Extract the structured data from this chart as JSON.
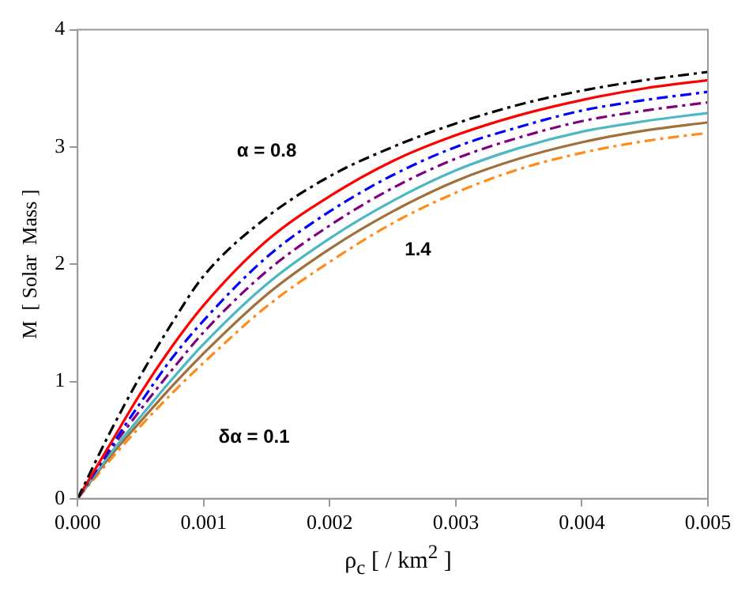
{
  "chart_data": {
    "type": "line",
    "xlabel": "ρ$_{c}$  [ / km$^{2}$ ]",
    "ylabel": "M  [ Solar  Mass ]",
    "x": [
      0,
      0.00025,
      0.0005,
      0.00075,
      0.001,
      0.0015,
      0.002,
      0.0025,
      0.003,
      0.0035,
      0.004,
      0.0045,
      0.005
    ],
    "series": [
      {
        "color": "#000000",
        "line_style": "dashed",
        "values": [
          0,
          0.55,
          1.05,
          1.5,
          1.9,
          2.4,
          2.75,
          3.0,
          3.2,
          3.36,
          3.48,
          3.57,
          3.64
        ]
      },
      {
        "color": "#ff0000",
        "line_style": "solid",
        "values": [
          0,
          0.45,
          0.9,
          1.3,
          1.65,
          2.2,
          2.58,
          2.88,
          3.1,
          3.27,
          3.4,
          3.5,
          3.57
        ]
      },
      {
        "color": "#0000ff",
        "line_style": "dashed",
        "values": [
          0,
          0.42,
          0.82,
          1.2,
          1.52,
          2.06,
          2.45,
          2.76,
          3.0,
          3.17,
          3.31,
          3.4,
          3.47
        ]
      },
      {
        "color": "#800080",
        "line_style": "dashed",
        "values": [
          0,
          0.4,
          0.76,
          1.1,
          1.42,
          1.94,
          2.33,
          2.65,
          2.9,
          3.08,
          3.22,
          3.31,
          3.38
        ]
      },
      {
        "color": "#4db8c4",
        "line_style": "solid",
        "values": [
          0,
          0.37,
          0.7,
          1.02,
          1.32,
          1.83,
          2.22,
          2.54,
          2.8,
          2.99,
          3.13,
          3.22,
          3.29
        ]
      },
      {
        "color": "#a0703a",
        "line_style": "solid",
        "values": [
          0,
          0.35,
          0.66,
          0.96,
          1.24,
          1.74,
          2.13,
          2.45,
          2.71,
          2.9,
          3.04,
          3.14,
          3.21
        ]
      },
      {
        "color": "#ff8c1a",
        "line_style": "dashed",
        "values": [
          0,
          0.32,
          0.62,
          0.9,
          1.16,
          1.64,
          2.02,
          2.35,
          2.61,
          2.81,
          2.95,
          3.05,
          3.12
        ]
      }
    ],
    "xlim": [
      0,
      0.005
    ],
    "xticks": [
      {
        "value": 0,
        "label": "0.000"
      },
      {
        "value": 0.001,
        "label": "0.001"
      },
      {
        "value": 0.002,
        "label": "0.002"
      },
      {
        "value": 0.003,
        "label": "0.003"
      },
      {
        "value": 0.004,
        "label": "0.004"
      },
      {
        "value": 0.005,
        "label": "0.005"
      }
    ],
    "ylim": [
      0,
      4
    ],
    "yticks": [
      0,
      1,
      2,
      3,
      4
    ],
    "annotations": [
      "α = 0.8",
      "1.4",
      "δα = 0.1"
    ],
    "grid": false,
    "legend": false,
    "marker": "none"
  }
}
